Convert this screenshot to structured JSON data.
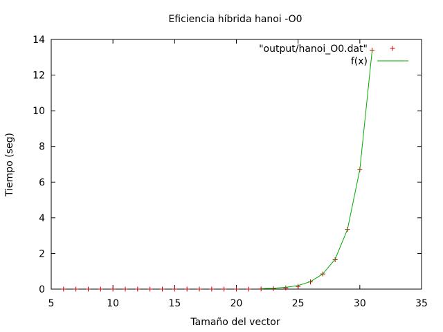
{
  "chart_data": {
    "type": "scatter",
    "title": "Eficiencia híbrida hanoi -O0",
    "xlabel": "Tamaño del vector",
    "ylabel": "Tiempo (seg)",
    "xlim": [
      5,
      35
    ],
    "ylim": [
      0,
      14
    ],
    "xticks": [
      5,
      10,
      15,
      20,
      25,
      30,
      35
    ],
    "yticks": [
      0,
      2,
      4,
      6,
      8,
      10,
      12,
      14
    ],
    "grid": false,
    "legend_position": "top-right",
    "series": [
      {
        "name": "\"output/hanoi_O0.dat\"",
        "kind": "points",
        "marker": "plus",
        "color": "#cc0000",
        "x": [
          6,
          7,
          8,
          9,
          10,
          11,
          12,
          13,
          14,
          15,
          16,
          17,
          18,
          19,
          20,
          21,
          22,
          23,
          24,
          25,
          26,
          27,
          28,
          29,
          30,
          31
        ],
        "y": [
          0,
          0,
          0,
          0,
          0,
          0,
          0,
          0,
          0,
          0,
          0,
          0,
          0,
          0,
          0,
          0,
          0.01,
          0.03,
          0.07,
          0.15,
          0.4,
          0.85,
          1.65,
          3.35,
          6.7,
          13.4
        ]
      },
      {
        "name": "f(x)",
        "kind": "line",
        "color": "#00aa00",
        "x": [
          22,
          23,
          24,
          25,
          26,
          27,
          28,
          29,
          30,
          31
        ],
        "y": [
          0.03,
          0.05,
          0.1,
          0.2,
          0.42,
          0.85,
          1.68,
          3.35,
          6.7,
          13.4
        ]
      }
    ]
  }
}
